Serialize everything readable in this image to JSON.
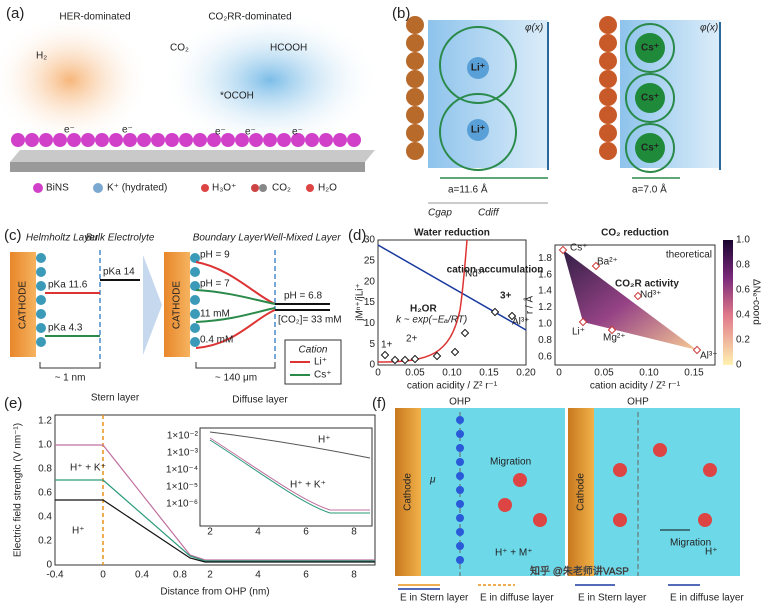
{
  "a": {
    "label": "(a)",
    "her": "HER-dominated",
    "co2rr": "CO₂RR-dominated",
    "h2": "H₂",
    "co2": "CO₂",
    "hcooh": "HCOOH",
    "ocoh": "*OCOH",
    "electron": "e⁻",
    "legend": [
      "BiNS",
      "K⁺ (hydrated)",
      "H₃O⁺",
      "CO₂",
      "H₂O"
    ]
  },
  "b": {
    "label": "(b)",
    "li": "Li⁺",
    "cs": "Cs⁺",
    "a_li": "a=11.6 Å",
    "a_cs": "a=7.0 Å",
    "cgap": "Cgap",
    "cdiff": "Cdiff",
    "phi": "φ(x)"
  },
  "c": {
    "label": "(c)",
    "helmholtz": "Helmholtz Layer",
    "bulk": "Bulk Electrolyte",
    "boundary": "Boundary Layer",
    "wellmixed": "Well-Mixed Layer",
    "cathode": "CATHODE",
    "pka116": "pKa 11.6",
    "pka43": "pKa 4.3",
    "pka14": "pKa 14",
    "ph9": "pH = 9",
    "ph7": "pH = 7",
    "mm11": "11 mM",
    "mm04": "0.4 mM",
    "ph68": "pH = 6.8",
    "co2conc": "[CO₂]= 33 mM",
    "nm1": "~ 1 nm",
    "um140": "~ 140 μm",
    "cation": "Cation",
    "li": "Li⁺",
    "cs": "Cs⁺"
  },
  "d": {
    "label": "(d)",
    "left": {
      "title": "Water reduction",
      "ylabel": "jMⁿ⁺/jLi⁺",
      "xlabel": "cation acidity / Z² r⁻¹",
      "xticks": [
        "0",
        "0.05",
        "0.10",
        "0.15",
        "0.20"
      ],
      "yticks": [
        "0",
        "5",
        "10",
        "15",
        "20",
        "25",
        "30"
      ],
      "accumulation": "cation accumulation",
      "c3": "3+",
      "c2": "2+",
      "c1": "1+",
      "nd": "Nd³⁺",
      "al": "Al³⁺",
      "h2or": "H₂OR",
      "k": "k ~ exp(−Eₐ/RT)"
    },
    "right": {
      "title": "CO₂ reduction",
      "theoretical": "theoretical",
      "xlabel": "cation acidity / Z² r⁻¹",
      "ylabel": "r / Å",
      "xticks": [
        "0",
        "0.05",
        "0.10",
        "0.15"
      ],
      "yticks": [
        "0.6",
        "0.8",
        "1.0",
        "1.2",
        "1.4",
        "1.6",
        "1.8"
      ],
      "cbticks": [
        "0",
        "0.2",
        "0.4",
        "0.6",
        "0.8",
        "1.0"
      ],
      "cblabel": "ΔNₑ-coord",
      "activity": "CO₂R activity",
      "cs": "Cs⁺",
      "ba": "Ba²⁺",
      "nd": "Nd³⁺",
      "li": "Li⁺",
      "mg": "Mg²⁺",
      "al": "Al³⁺"
    }
  },
  "e": {
    "label": "(e)",
    "stern": "Stern layer",
    "diffuse": "Diffuse layer",
    "ylabel": "Electric field strength (V nm⁻¹)",
    "xlabel": "Distance from OHP (nm)",
    "xticks": [
      "-0.4",
      "0",
      "0.4",
      "0.8",
      "2",
      "4",
      "6",
      "8"
    ],
    "yticks": [
      "0",
      "0.2",
      "0.4",
      "0.6",
      "0.8",
      "1.0",
      "1.2"
    ],
    "hk": "H⁺ + K⁺",
    "h": "H⁺",
    "inset_yticks": [
      "1×10⁻²",
      "1×10⁻³",
      "1×10⁻⁴",
      "1×10⁻⁵",
      "1×10⁻⁶"
    ],
    "inset_xticks": [
      "2",
      "4",
      "6",
      "8"
    ]
  },
  "f": {
    "label": "(f)",
    "ohp": "OHP",
    "cathode": "Cathode",
    "migration": "Migration",
    "hm": "H⁺ + M⁺",
    "h": "H⁺",
    "mu": "μ",
    "estern": "E in Stern layer",
    "ediffuse": "E in diffuse layer"
  },
  "watermark": "知乎 @朱老师讲VASP"
}
